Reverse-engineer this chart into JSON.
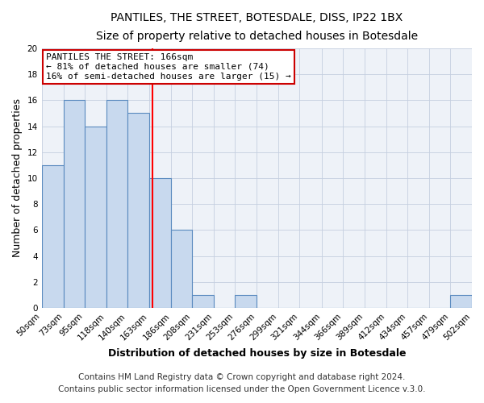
{
  "title": "PANTILES, THE STREET, BOTESDALE, DISS, IP22 1BX",
  "subtitle": "Size of property relative to detached houses in Botesdale",
  "xlabel": "Distribution of detached houses by size in Botesdale",
  "ylabel": "Number of detached properties",
  "bar_color": "#c8d9ee",
  "bar_edge_color": "#5a8abf",
  "bin_edges": [
    50,
    73,
    95,
    118,
    140,
    163,
    186,
    208,
    231,
    253,
    276,
    299,
    321,
    344,
    366,
    389,
    412,
    434,
    457,
    479,
    502
  ],
  "bin_labels": [
    "50sqm",
    "73sqm",
    "95sqm",
    "118sqm",
    "140sqm",
    "163sqm",
    "186sqm",
    "208sqm",
    "231sqm",
    "253sqm",
    "276sqm",
    "299sqm",
    "321sqm",
    "344sqm",
    "366sqm",
    "389sqm",
    "412sqm",
    "434sqm",
    "457sqm",
    "479sqm",
    "502sqm"
  ],
  "counts": [
    11,
    16,
    14,
    16,
    15,
    10,
    6,
    1,
    0,
    1,
    0,
    0,
    0,
    0,
    0,
    0,
    0,
    0,
    0,
    1
  ],
  "vline_x": 166,
  "vline_color": "red",
  "ylim": [
    0,
    20
  ],
  "yticks": [
    0,
    2,
    4,
    6,
    8,
    10,
    12,
    14,
    16,
    18,
    20
  ],
  "annotation_title": "PANTILES THE STREET: 166sqm",
  "annotation_line1": "← 81% of detached houses are smaller (74)",
  "annotation_line2": "16% of semi-detached houses are larger (15) →",
  "footer_line1": "Contains HM Land Registry data © Crown copyright and database right 2024.",
  "footer_line2": "Contains public sector information licensed under the Open Government Licence v.3.0.",
  "background_color": "#eef2f8",
  "grid_color": "#c5cfe0",
  "title_fontsize": 10,
  "subtitle_fontsize": 9.5,
  "axis_label_fontsize": 9,
  "tick_fontsize": 7.5,
  "annotation_fontsize": 8,
  "footer_fontsize": 7.5
}
